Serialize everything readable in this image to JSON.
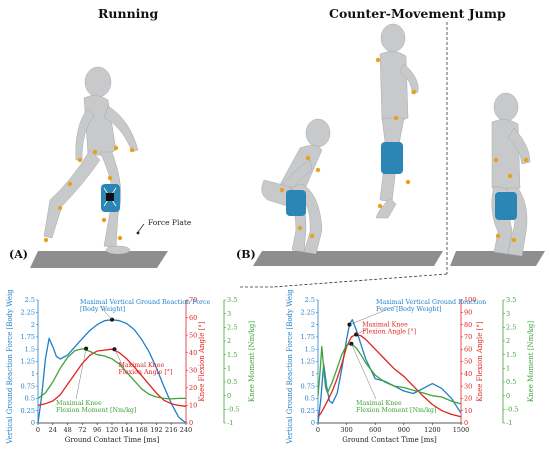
{
  "titles": {
    "running": "Running",
    "cmj": "Counter-Movement Jump"
  },
  "panels": {
    "a": "(A)",
    "b": "(B)"
  },
  "force_plate_label": "Force Plate",
  "colors": {
    "vgrf": "#1f7fc9",
    "knee_angle": "#e0231f",
    "knee_moment": "#3fa33a",
    "figure": "#c9cacc",
    "plate": "#8a8a8a",
    "marker": "#e8a020",
    "brace": "#2b86b5"
  },
  "chart_data": [
    {
      "type": "line",
      "title": "",
      "xlabel": "Ground Contact Time [ms]",
      "xticks": [
        0,
        24,
        48,
        72,
        96,
        120,
        144,
        168,
        192,
        216,
        240
      ],
      "xlim": [
        0,
        240
      ],
      "axes": {
        "left": {
          "label": "Vertical Ground Reaction Force [Body Weight]",
          "ticks": [
            "0",
            "0.25",
            "0.5",
            "0.75",
            "1",
            "1.25",
            "1.5",
            "1.75",
            "2",
            "2.25",
            "2.5"
          ],
          "lim": [
            0,
            2.5
          ]
        },
        "mid": {
          "label": "Knee Flexion Angle [°]",
          "ticks": [
            "0",
            "10",
            "20",
            "30",
            "40",
            "50",
            "60",
            "70"
          ],
          "lim": [
            0,
            70
          ]
        },
        "right": {
          "label": "Knee Moment [Nm/kg]",
          "ticks": [
            "-1",
            "-0.5",
            "0",
            "0.5",
            "1",
            "1.5",
            "2",
            "2.5",
            "3",
            "3.5"
          ],
          "lim": [
            -1,
            3.5
          ]
        }
      },
      "series": [
        {
          "axis": "left",
          "x": [
            0,
            6,
            12,
            18,
            24,
            30,
            36,
            48,
            60,
            72,
            84,
            96,
            108,
            120,
            132,
            144,
            156,
            168,
            180,
            192,
            204,
            216,
            228,
            240
          ],
          "values": [
            0,
            0.55,
            1.3,
            1.72,
            1.55,
            1.35,
            1.3,
            1.38,
            1.55,
            1.72,
            1.88,
            2.0,
            2.08,
            2.1,
            2.08,
            2.02,
            1.9,
            1.7,
            1.45,
            1.12,
            0.75,
            0.4,
            0.12,
            0
          ]
        },
        {
          "axis": "mid",
          "x": [
            0,
            12,
            24,
            36,
            48,
            60,
            72,
            84,
            96,
            108,
            120,
            132,
            144,
            156,
            168,
            180,
            192,
            204,
            216,
            228,
            240
          ],
          "values": [
            10,
            11,
            12.5,
            16,
            22,
            28,
            34,
            38.5,
            41,
            41.5,
            42,
            40,
            36.5,
            32,
            27,
            22,
            17,
            13,
            11,
            10,
            9.5
          ]
        },
        {
          "axis": "right",
          "x": [
            0,
            12,
            24,
            36,
            48,
            60,
            72,
            84,
            96,
            108,
            120,
            132,
            144,
            156,
            168,
            180,
            192,
            204,
            216,
            228,
            240
          ],
          "values": [
            -0.1,
            0.1,
            0.5,
            1.0,
            1.4,
            1.65,
            1.72,
            1.62,
            1.5,
            1.45,
            1.35,
            1.15,
            0.85,
            0.55,
            0.25,
            0.05,
            -0.05,
            -0.1,
            -0.12,
            -0.1,
            -0.1
          ]
        }
      ],
      "annotations": [
        {
          "text": [
            "Maximal Vertical Ground Reaction Force",
            "[Body Weight]"
          ],
          "at": [
            120,
            2.1
          ],
          "axis": "left"
        },
        {
          "text": [
            "Maximal Knee",
            "Flexion Angle [°]"
          ],
          "at": [
            124,
            42
          ],
          "axis": "mid"
        },
        {
          "text": [
            "Maximal Knee",
            "Flexion Moment [Nm/kg]"
          ],
          "at": [
            78,
            1.72
          ],
          "axis": "right"
        }
      ]
    },
    {
      "type": "line",
      "title": "",
      "xlabel": "Ground Contact Time [ms]",
      "xticks": [
        0,
        300,
        600,
        900,
        1200,
        1500
      ],
      "xlim": [
        0,
        1500
      ],
      "axes": {
        "left": {
          "label": "Vertical Ground Reaction Force [Body Weight]",
          "ticks": [
            "0",
            "0.25",
            "0.5",
            "0.75",
            "1",
            "1.25",
            "1.5",
            "1.75",
            "2",
            "2.25",
            "2.5"
          ],
          "lim": [
            0,
            2.5
          ]
        },
        "mid": {
          "label": "Knee Flexion Angle [°]",
          "ticks": [
            "0",
            "10",
            "20",
            "30",
            "40",
            "50",
            "60",
            "70",
            "80",
            "90",
            "100"
          ],
          "lim": [
            0,
            100
          ]
        },
        "right": {
          "label": "Knee Moment [Nm/kg]",
          "ticks": [
            "-1",
            "-0.5",
            "0",
            "0.5",
            "1",
            "1.5",
            "2",
            "2.5",
            "3",
            "3.5"
          ],
          "lim": [
            -1,
            3.5
          ]
        }
      },
      "series": [
        {
          "axis": "left",
          "x": [
            0,
            30,
            60,
            90,
            120,
            150,
            200,
            250,
            300,
            330,
            360,
            400,
            450,
            500,
            600,
            700,
            800,
            900,
            1000,
            1100,
            1200,
            1300,
            1400,
            1500
          ],
          "values": [
            0,
            0.5,
            1.2,
            0.75,
            0.45,
            0.4,
            0.6,
            1.1,
            1.7,
            2.0,
            2.1,
            1.9,
            1.6,
            1.3,
            0.9,
            0.85,
            0.75,
            0.65,
            0.6,
            0.7,
            0.8,
            0.7,
            0.5,
            0.2
          ]
        },
        {
          "axis": "mid",
          "x": [
            0,
            30,
            60,
            100,
            150,
            200,
            250,
            300,
            350,
            400,
            450,
            500,
            600,
            700,
            800,
            900,
            1000,
            1100,
            1200,
            1300,
            1400,
            1500
          ],
          "values": [
            5,
            8,
            12,
            18,
            26,
            36,
            48,
            62,
            70,
            72,
            71,
            68,
            60,
            52,
            44,
            38,
            30,
            22,
            15,
            10,
            7,
            5
          ]
        },
        {
          "axis": "right",
          "x": [
            0,
            20,
            40,
            60,
            80,
            100,
            150,
            200,
            250,
            300,
            350,
            400,
            450,
            500,
            600,
            700,
            800,
            900,
            1000,
            1100,
            1200,
            1300,
            1400,
            1500
          ],
          "values": [
            0,
            0.8,
            1.8,
            1.0,
            0.3,
            0.1,
            0.5,
            1.0,
            1.5,
            1.85,
            1.9,
            1.75,
            1.5,
            1.2,
            0.75,
            0.5,
            0.35,
            0.3,
            0.2,
            0.1,
            0.0,
            -0.05,
            -0.2,
            -0.3
          ]
        }
      ],
      "annotations": [
        {
          "text": [
            "Maximal Vertical Ground Reaction",
            "Force [Body Weight]"
          ],
          "at": [
            330,
            2.0
          ],
          "axis": "left"
        },
        {
          "text": [
            "Maximal Knee",
            "Flexion Angle [°]"
          ],
          "at": [
            400,
            72
          ],
          "axis": "mid"
        },
        {
          "text": [
            "Maximal Knee",
            "Flexion Moment [Nm/kg]"
          ],
          "at": [
            350,
            1.9
          ],
          "axis": "right"
        }
      ]
    }
  ]
}
